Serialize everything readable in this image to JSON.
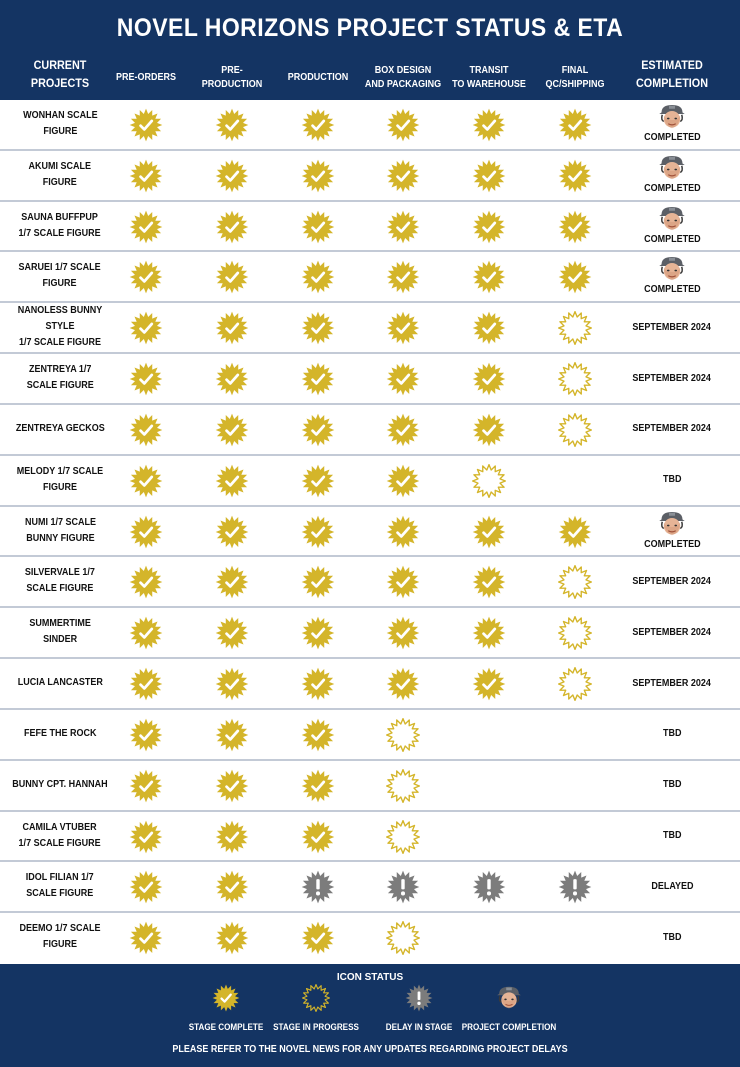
{
  "header": {
    "title": "NOVEL HORIZONS PROJECT STATUS & ETA",
    "col_project": [
      "CURRENT",
      "PROJECTS"
    ],
    "stages": [
      [
        "PRE-ORDERS"
      ],
      [
        "PRE-PRODUCTION"
      ],
      [
        "PRODUCTION"
      ],
      [
        "BOX DESIGN",
        "AND PACKAGING"
      ],
      [
        "TRANSIT",
        "TO WAREHOUSE"
      ],
      [
        "FINAL",
        "QC/SHIPPING"
      ]
    ],
    "col_eta": [
      "ESTIMATED",
      "COMPLETION"
    ]
  },
  "colors": {
    "navy": "#143463",
    "complete_gold": "#d4b52a",
    "delay_gray": "#7c7c7c",
    "divider": "#c3cad6"
  },
  "status_icons": {
    "c": "stage-complete-icon",
    "p": "stage-in-progress-icon",
    "d": "delay-in-stage-icon",
    "n": "none"
  },
  "projects": [
    {
      "name": [
        "WONHAN SCALE",
        "FIGURE"
      ],
      "stages": [
        "c",
        "c",
        "c",
        "c",
        "c",
        "c"
      ],
      "eta": "COMPLETED",
      "completed": true
    },
    {
      "name": [
        "AKUMI SCALE",
        "FIGURE"
      ],
      "stages": [
        "c",
        "c",
        "c",
        "c",
        "c",
        "c"
      ],
      "eta": "COMPLETED",
      "completed": true
    },
    {
      "name": [
        "SAUNA BUFFPUP",
        "1/7 SCALE FIGURE"
      ],
      "stages": [
        "c",
        "c",
        "c",
        "c",
        "c",
        "c"
      ],
      "eta": "COMPLETED",
      "completed": true
    },
    {
      "name": [
        "SARUEI 1/7 SCALE",
        "FIGURE"
      ],
      "stages": [
        "c",
        "c",
        "c",
        "c",
        "c",
        "c"
      ],
      "eta": "COMPLETED",
      "completed": true
    },
    {
      "name": [
        "NANOLESS BUNNY STYLE",
        "1/7 SCALE FIGURE"
      ],
      "stages": [
        "c",
        "c",
        "c",
        "c",
        "c",
        "p"
      ],
      "eta": "SEPTEMBER 2024",
      "completed": false
    },
    {
      "name": [
        "ZENTREYA 1/7",
        "SCALE FIGURE"
      ],
      "stages": [
        "c",
        "c",
        "c",
        "c",
        "c",
        "p"
      ],
      "eta": "SEPTEMBER 2024",
      "completed": false
    },
    {
      "name": [
        "ZENTREYA GECKOS"
      ],
      "stages": [
        "c",
        "c",
        "c",
        "c",
        "c",
        "p"
      ],
      "eta": "SEPTEMBER 2024",
      "completed": false
    },
    {
      "name": [
        "MELODY 1/7 SCALE",
        "FIGURE"
      ],
      "stages": [
        "c",
        "c",
        "c",
        "c",
        "p",
        "n"
      ],
      "eta": "TBD",
      "completed": false
    },
    {
      "name": [
        "NUMI 1/7 SCALE",
        "BUNNY FIGURE"
      ],
      "stages": [
        "c",
        "c",
        "c",
        "c",
        "c",
        "c"
      ],
      "eta": "COMPLETED",
      "completed": true
    },
    {
      "name": [
        "SILVERVALE 1/7",
        "SCALE FIGURE"
      ],
      "stages": [
        "c",
        "c",
        "c",
        "c",
        "c",
        "p"
      ],
      "eta": "SEPTEMBER 2024",
      "completed": false
    },
    {
      "name": [
        "SUMMERTIME",
        "SINDER"
      ],
      "stages": [
        "c",
        "c",
        "c",
        "c",
        "c",
        "p"
      ],
      "eta": "SEPTEMBER 2024",
      "completed": false
    },
    {
      "name": [
        "LUCIA LANCASTER"
      ],
      "stages": [
        "c",
        "c",
        "c",
        "c",
        "c",
        "p"
      ],
      "eta": "SEPTEMBER 2024",
      "completed": false
    },
    {
      "name": [
        "FEFE THE ROCK"
      ],
      "stages": [
        "c",
        "c",
        "c",
        "p",
        "n",
        "n"
      ],
      "eta": "TBD",
      "completed": false
    },
    {
      "name": [
        "BUNNY CPT. HANNAH"
      ],
      "stages": [
        "c",
        "c",
        "c",
        "p",
        "n",
        "n"
      ],
      "eta": "TBD",
      "completed": false
    },
    {
      "name": [
        "CAMILA VTUBER",
        "1/7 SCALE FIGURE"
      ],
      "stages": [
        "c",
        "c",
        "c",
        "p",
        "n",
        "n"
      ],
      "eta": "TBD",
      "completed": false
    },
    {
      "name": [
        "IDOL FILIAN 1/7",
        "SCALE FIGURE"
      ],
      "stages": [
        "c",
        "c",
        "d",
        "d",
        "d",
        "d"
      ],
      "eta": "DELAYED",
      "completed": false
    },
    {
      "name": [
        "DEEMO 1/7 SCALE",
        "FIGURE"
      ],
      "stages": [
        "c",
        "c",
        "c",
        "p",
        "n",
        "n"
      ],
      "eta": "TBD",
      "completed": false
    }
  ],
  "footer": {
    "title": "ICON STATUS",
    "legend": [
      {
        "type": "c",
        "label": "STAGE COMPLETE"
      },
      {
        "type": "p",
        "label": "STAGE IN PROGRESS"
      },
      {
        "type": "d",
        "label": "DELAY IN STAGE"
      },
      {
        "type": "avatar",
        "label": "PROJECT COMPLETION"
      }
    ],
    "note": "PLEASE REFER TO THE NOVEL NEWS FOR ANY UPDATES REGARDING PROJECT DELAYS"
  }
}
